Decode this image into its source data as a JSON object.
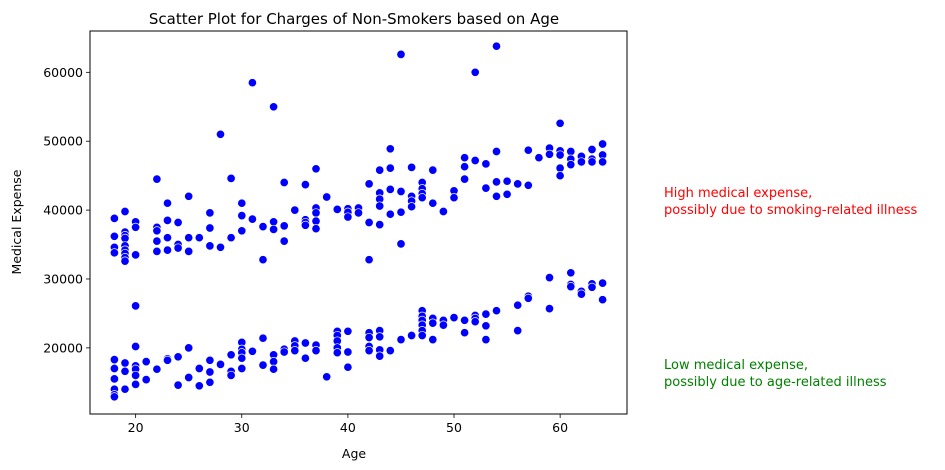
{
  "chart_data": {
    "type": "scatter",
    "title": "Scatter Plot for Charges of Non-Smokers based on Age",
    "xlabel": "Age",
    "ylabel": "Medical Expense",
    "xlim": [
      15.7,
      66.3
    ],
    "ylim": [
      10400,
      66000
    ],
    "xticks": [
      20,
      30,
      40,
      50,
      60
    ],
    "yticks": [
      20000,
      30000,
      40000,
      50000,
      60000
    ],
    "grid": false,
    "marker_color": "#0000ff",
    "series": [
      {
        "points": [
          [
            18,
            38800
          ],
          [
            18,
            36200
          ],
          [
            18,
            34600
          ],
          [
            18,
            33800
          ],
          [
            18,
            18300
          ],
          [
            18,
            17000
          ],
          [
            18,
            15500
          ],
          [
            18,
            14000
          ],
          [
            18,
            13200
          ],
          [
            18,
            12900
          ],
          [
            19,
            39800
          ],
          [
            19,
            36800
          ],
          [
            19,
            36300
          ],
          [
            19,
            35900
          ],
          [
            19,
            34800
          ],
          [
            19,
            34200
          ],
          [
            19,
            33700
          ],
          [
            19,
            33100
          ],
          [
            19,
            32600
          ],
          [
            19,
            17800
          ],
          [
            19,
            16600
          ],
          [
            19,
            14000
          ],
          [
            20,
            38300
          ],
          [
            20,
            37500
          ],
          [
            20,
            33500
          ],
          [
            20,
            26100
          ],
          [
            20,
            20200
          ],
          [
            20,
            17400
          ],
          [
            20,
            16900
          ],
          [
            20,
            16000
          ],
          [
            20,
            14700
          ],
          [
            21,
            18000
          ],
          [
            21,
            15400
          ],
          [
            22,
            44500
          ],
          [
            22,
            37500
          ],
          [
            22,
            37000
          ],
          [
            22,
            35500
          ],
          [
            22,
            34000
          ],
          [
            22,
            16900
          ],
          [
            23,
            41000
          ],
          [
            23,
            38500
          ],
          [
            23,
            36000
          ],
          [
            23,
            34200
          ],
          [
            23,
            18400
          ],
          [
            23,
            18200
          ],
          [
            24,
            38200
          ],
          [
            24,
            35000
          ],
          [
            24,
            34500
          ],
          [
            24,
            18700
          ],
          [
            24,
            14600
          ],
          [
            25,
            42000
          ],
          [
            25,
            36000
          ],
          [
            25,
            34000
          ],
          [
            25,
            20000
          ],
          [
            25,
            15700
          ],
          [
            26,
            36000
          ],
          [
            26,
            17000
          ],
          [
            26,
            14500
          ],
          [
            27,
            39600
          ],
          [
            27,
            37400
          ],
          [
            27,
            34800
          ],
          [
            27,
            18200
          ],
          [
            27,
            16500
          ],
          [
            27,
            15000
          ],
          [
            28,
            51000
          ],
          [
            28,
            34600
          ],
          [
            28,
            17600
          ],
          [
            29,
            44600
          ],
          [
            29,
            36000
          ],
          [
            29,
            19000
          ],
          [
            29,
            16600
          ],
          [
            29,
            16000
          ],
          [
            30,
            41000
          ],
          [
            30,
            39200
          ],
          [
            30,
            37000
          ],
          [
            30,
            20800
          ],
          [
            30,
            19800
          ],
          [
            30,
            19300
          ],
          [
            30,
            18500
          ],
          [
            30,
            17000
          ],
          [
            31,
            58500
          ],
          [
            31,
            38700
          ],
          [
            31,
            19500
          ],
          [
            32,
            37600
          ],
          [
            32,
            32800
          ],
          [
            32,
            21400
          ],
          [
            32,
            17500
          ],
          [
            33,
            55000
          ],
          [
            33,
            38300
          ],
          [
            33,
            37200
          ],
          [
            33,
            19000
          ],
          [
            33,
            18000
          ],
          [
            33,
            16900
          ],
          [
            34,
            44000
          ],
          [
            34,
            37700
          ],
          [
            34,
            35500
          ],
          [
            34,
            19800
          ],
          [
            34,
            19400
          ],
          [
            35,
            40000
          ],
          [
            35,
            21000
          ],
          [
            35,
            20300
          ],
          [
            35,
            19600
          ],
          [
            36,
            43700
          ],
          [
            36,
            38600
          ],
          [
            36,
            38200
          ],
          [
            36,
            37800
          ],
          [
            36,
            20700
          ],
          [
            36,
            18500
          ],
          [
            37,
            46000
          ],
          [
            37,
            40300
          ],
          [
            37,
            39600
          ],
          [
            37,
            38400
          ],
          [
            37,
            37300
          ],
          [
            37,
            20400
          ],
          [
            37,
            19600
          ],
          [
            38,
            41900
          ],
          [
            38,
            15800
          ],
          [
            39,
            40100
          ],
          [
            39,
            22400
          ],
          [
            39,
            21800
          ],
          [
            39,
            21000
          ],
          [
            39,
            20000
          ],
          [
            39,
            19300
          ],
          [
            40,
            40200
          ],
          [
            40,
            39700
          ],
          [
            40,
            39000
          ],
          [
            40,
            22400
          ],
          [
            40,
            19400
          ],
          [
            40,
            17200
          ],
          [
            41,
            40300
          ],
          [
            41,
            39600
          ],
          [
            42,
            43800
          ],
          [
            42,
            38200
          ],
          [
            42,
            32800
          ],
          [
            42,
            22200
          ],
          [
            42,
            21500
          ],
          [
            42,
            20200
          ],
          [
            42,
            19600
          ],
          [
            43,
            45800
          ],
          [
            43,
            42500
          ],
          [
            43,
            41600
          ],
          [
            43,
            40600
          ],
          [
            43,
            37900
          ],
          [
            43,
            22500
          ],
          [
            43,
            21600
          ],
          [
            43,
            19700
          ],
          [
            43,
            18800
          ],
          [
            44,
            48900
          ],
          [
            44,
            46100
          ],
          [
            44,
            43000
          ],
          [
            44,
            39400
          ],
          [
            44,
            19600
          ],
          [
            45,
            62600
          ],
          [
            45,
            42700
          ],
          [
            45,
            39700
          ],
          [
            45,
            35100
          ],
          [
            45,
            21200
          ],
          [
            46,
            46200
          ],
          [
            46,
            42000
          ],
          [
            46,
            41300
          ],
          [
            46,
            40500
          ],
          [
            46,
            21800
          ],
          [
            47,
            44000
          ],
          [
            47,
            43100
          ],
          [
            47,
            42400
          ],
          [
            47,
            41800
          ],
          [
            47,
            25400
          ],
          [
            47,
            24600
          ],
          [
            47,
            24000
          ],
          [
            47,
            23300
          ],
          [
            47,
            22500
          ],
          [
            47,
            21800
          ],
          [
            48,
            45800
          ],
          [
            48,
            41000
          ],
          [
            48,
            24300
          ],
          [
            48,
            23600
          ],
          [
            48,
            21200
          ],
          [
            49,
            39800
          ],
          [
            49,
            24000
          ],
          [
            49,
            23300
          ],
          [
            50,
            42800
          ],
          [
            50,
            41800
          ],
          [
            50,
            24400
          ],
          [
            51,
            47600
          ],
          [
            51,
            46300
          ],
          [
            51,
            44500
          ],
          [
            51,
            24000
          ],
          [
            51,
            22200
          ],
          [
            52,
            60000
          ],
          [
            52,
            47200
          ],
          [
            52,
            24700
          ],
          [
            52,
            24300
          ],
          [
            52,
            23800
          ],
          [
            53,
            46700
          ],
          [
            53,
            43200
          ],
          [
            53,
            24900
          ],
          [
            53,
            23200
          ],
          [
            53,
            21200
          ],
          [
            54,
            63800
          ],
          [
            54,
            48500
          ],
          [
            54,
            44100
          ],
          [
            54,
            42000
          ],
          [
            54,
            25400
          ],
          [
            55,
            44200
          ],
          [
            55,
            42300
          ],
          [
            56,
            43800
          ],
          [
            56,
            26200
          ],
          [
            56,
            22500
          ],
          [
            57,
            48700
          ],
          [
            57,
            43600
          ],
          [
            57,
            27500
          ],
          [
            57,
            27200
          ],
          [
            58,
            47600
          ],
          [
            59,
            49000
          ],
          [
            59,
            48100
          ],
          [
            59,
            30200
          ],
          [
            59,
            25700
          ],
          [
            60,
            52600
          ],
          [
            60,
            48600
          ],
          [
            60,
            48000
          ],
          [
            60,
            46100
          ],
          [
            60,
            45000
          ],
          [
            61,
            48500
          ],
          [
            61,
            47400
          ],
          [
            61,
            46600
          ],
          [
            61,
            30900
          ],
          [
            61,
            29200
          ],
          [
            61,
            28900
          ],
          [
            62,
            47800
          ],
          [
            62,
            47000
          ],
          [
            62,
            28200
          ],
          [
            62,
            27800
          ],
          [
            63,
            48800
          ],
          [
            63,
            47400
          ],
          [
            63,
            47000
          ],
          [
            63,
            29300
          ],
          [
            63,
            28800
          ],
          [
            64,
            49600
          ],
          [
            64,
            48000
          ],
          [
            64,
            47000
          ],
          [
            64,
            29400
          ],
          [
            64,
            27000
          ]
        ]
      }
    ],
    "annotations": [
      {
        "lines": [
          "High medical expense,",
          "possibly due to smoking-related illness"
        ],
        "color": "#ff0000"
      },
      {
        "lines": [
          "Low medical expense,",
          "possibly due to age-related illness"
        ],
        "color": "#008000"
      }
    ]
  }
}
